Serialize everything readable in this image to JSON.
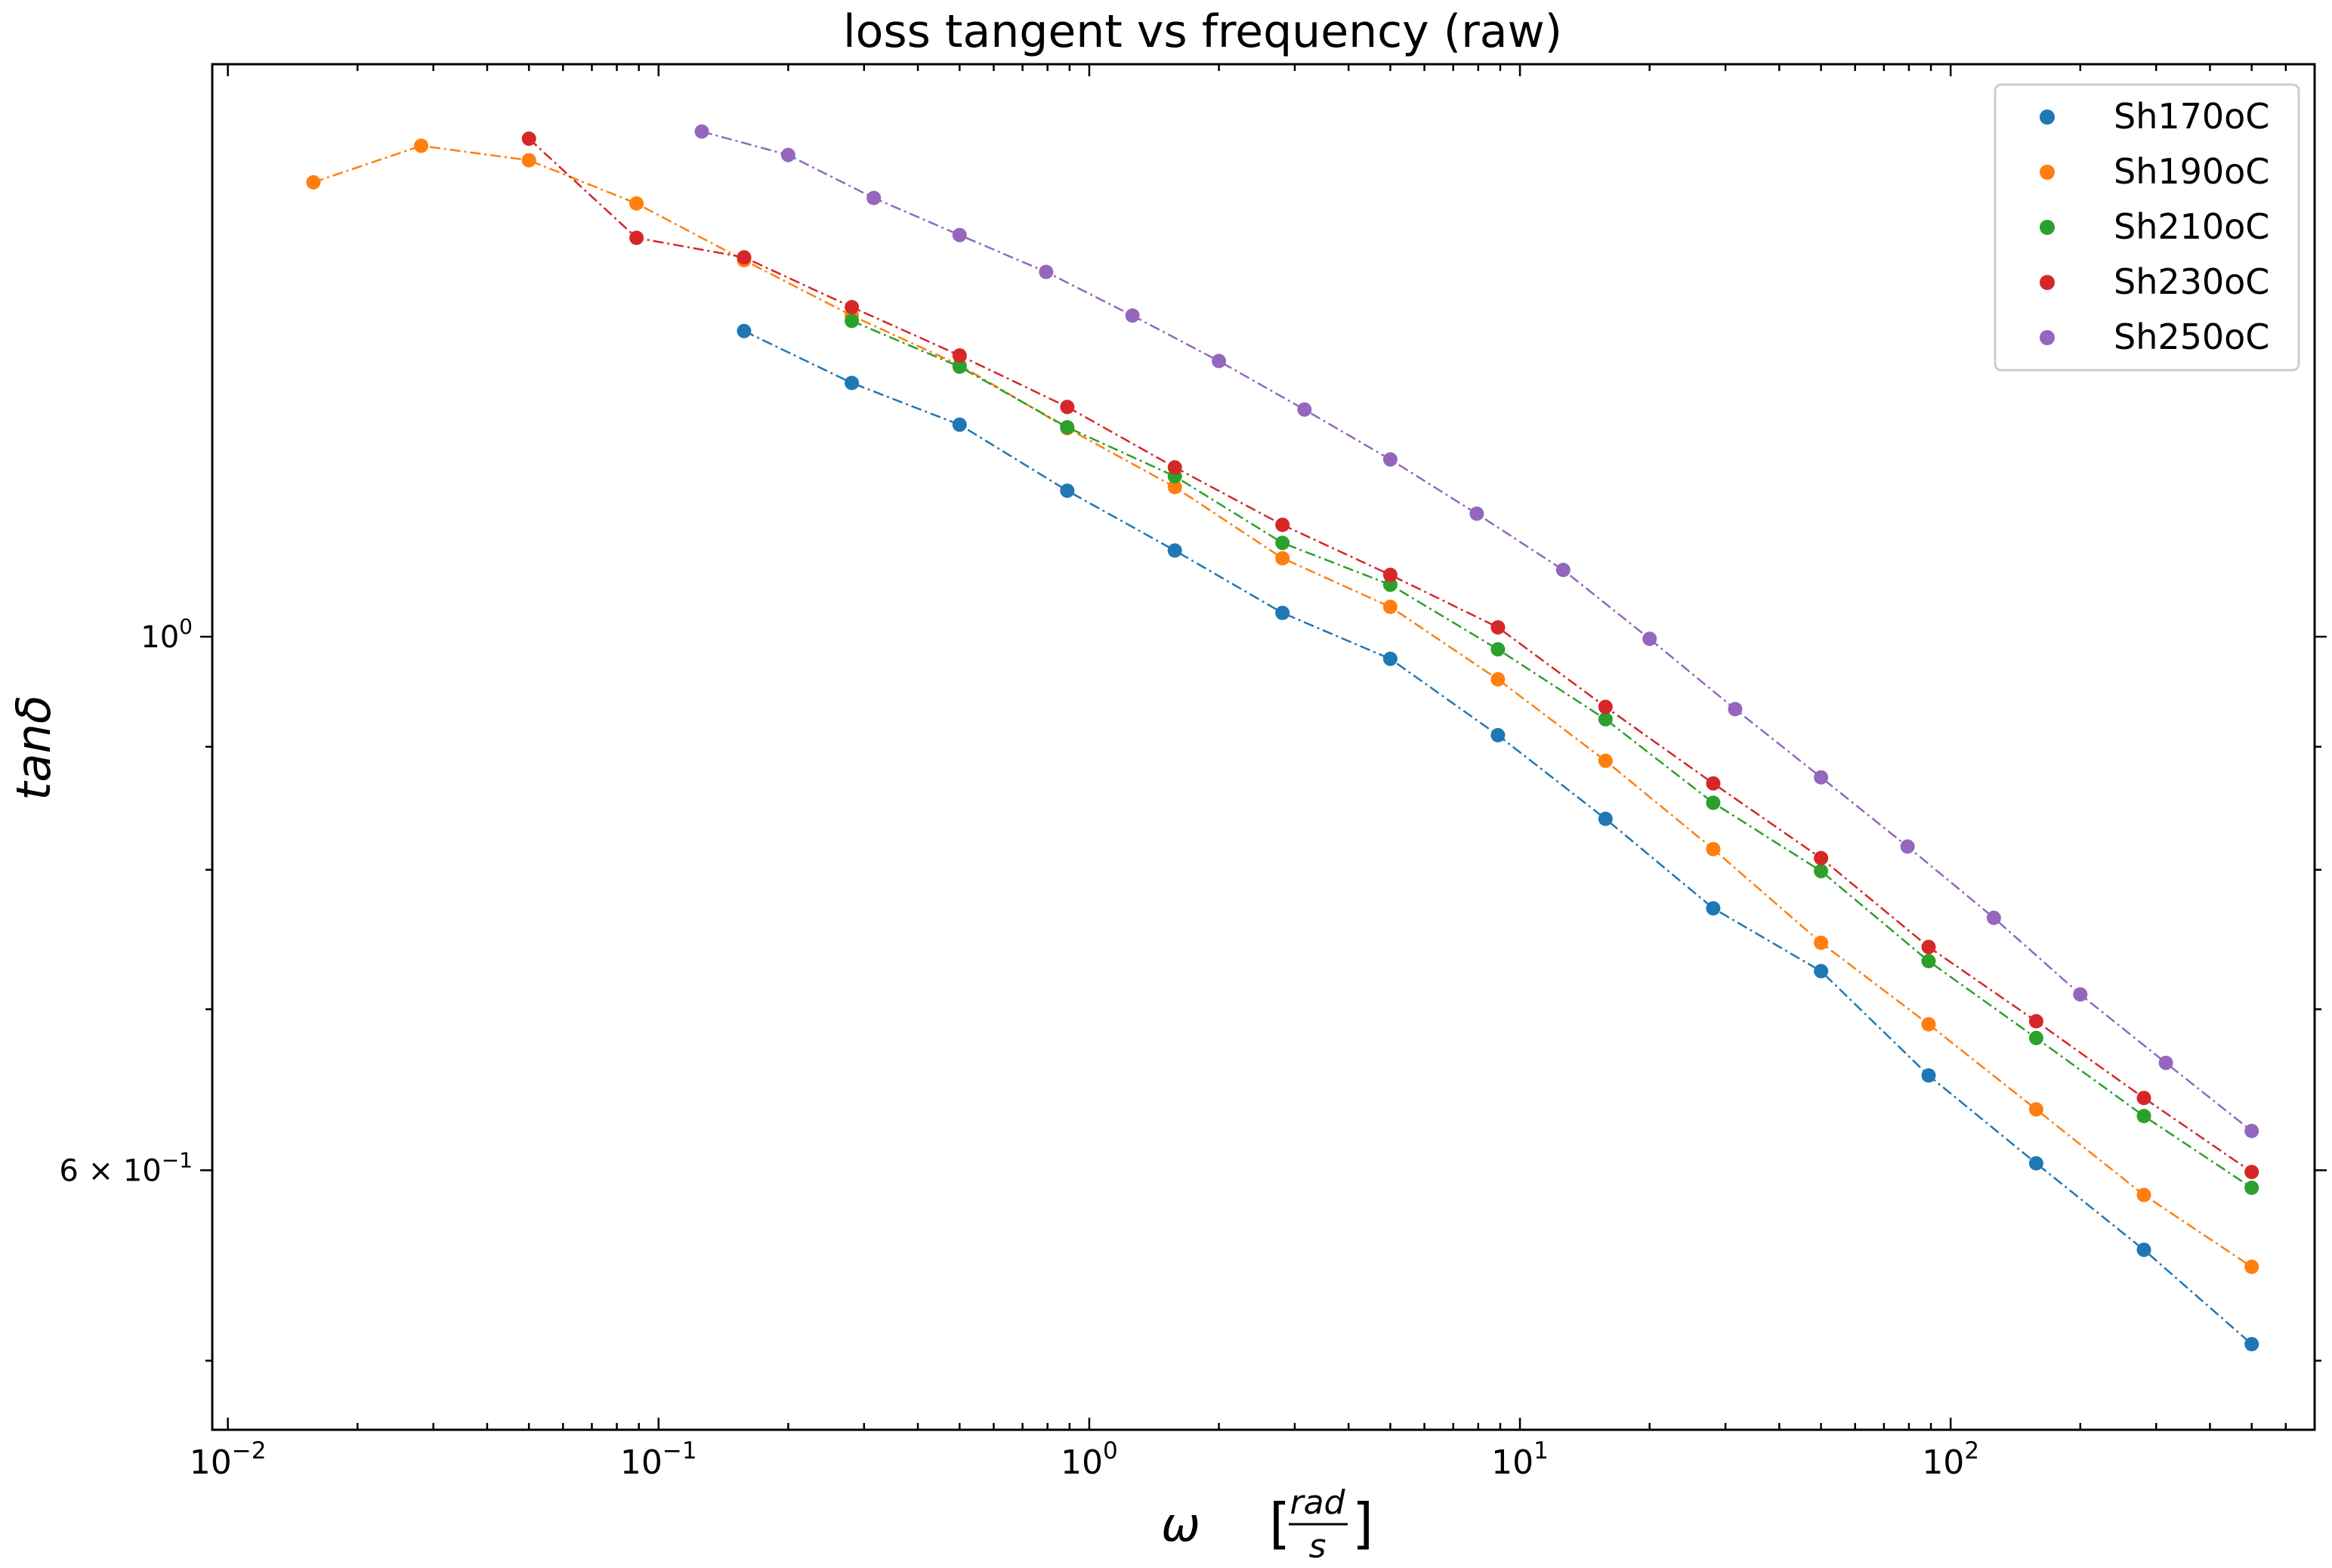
{
  "chart_data": {
    "type": "line",
    "title": "loss tangent vs frequency (raw)",
    "xlabel": {
      "symbol": "ω",
      "unit_numerator": "rad",
      "unit_denominator": "s"
    },
    "ylabel": "tanδ",
    "x_scale": "log",
    "y_scale": "log",
    "xlim": [
      0.0092,
      700
    ],
    "ylim": [
      0.468,
      1.73
    ],
    "x_ticks": [
      {
        "value": 0.01,
        "base": "10",
        "exp": "−2"
      },
      {
        "value": 0.1,
        "base": "10",
        "exp": "−1"
      },
      {
        "value": 1,
        "base": "10",
        "exp": "0"
      },
      {
        "value": 10,
        "base": "10",
        "exp": "1"
      },
      {
        "value": 100,
        "base": "10",
        "exp": "2"
      }
    ],
    "y_ticks": [
      {
        "value": 1.0,
        "mantissa": "",
        "base": "10",
        "exp": "0"
      },
      {
        "value": 0.6,
        "mantissa": "6 × ",
        "base": "10",
        "exp": "−1"
      }
    ],
    "y_minor_ticks": [
      0.5,
      0.7,
      0.8,
      0.9
    ],
    "legend_position": "top-right",
    "grid": false,
    "series": [
      {
        "name": "Sh170oC",
        "color": "#1f77b4",
        "x": [
          0.158,
          0.281,
          0.5,
          0.889,
          1.58,
          2.81,
          5.0,
          8.89,
          15.8,
          28.1,
          50.0,
          88.9,
          158,
          281,
          500
        ],
        "y": [
          1.34,
          1.275,
          1.225,
          1.15,
          1.086,
          1.023,
          0.979,
          0.91,
          0.84,
          0.771,
          0.726,
          0.657,
          0.604,
          0.556,
          0.508
        ]
      },
      {
        "name": "Sh190oC",
        "color": "#ff7f0e",
        "x": [
          0.0158,
          0.0281,
          0.05,
          0.0889,
          0.158,
          0.281,
          0.5,
          0.889,
          1.58,
          2.81,
          5.0,
          8.89,
          15.8,
          28.1,
          50.0,
          88.9,
          158,
          281,
          500
        ],
        "y": [
          1.545,
          1.6,
          1.578,
          1.514,
          1.434,
          1.36,
          1.297,
          1.221,
          1.154,
          1.078,
          1.029,
          0.96,
          0.888,
          0.816,
          0.746,
          0.69,
          0.636,
          0.586,
          0.547
        ]
      },
      {
        "name": "Sh210oC",
        "color": "#2ca02c",
        "x": [
          0.281,
          0.5,
          0.889,
          1.58,
          2.81,
          5.0,
          8.89,
          15.8,
          28.1,
          50.0,
          88.9,
          158,
          281,
          500
        ],
        "y": [
          1.353,
          1.295,
          1.222,
          1.166,
          1.094,
          1.051,
          0.988,
          0.924,
          0.853,
          0.799,
          0.733,
          0.681,
          0.632,
          0.59
        ]
      },
      {
        "name": "Sh230oC",
        "color": "#d62728",
        "x": [
          0.05,
          0.0889,
          0.158,
          0.281,
          0.5,
          0.889,
          1.58,
          2.81,
          5.0,
          8.89,
          15.8,
          28.1,
          50.0,
          88.9,
          158,
          281,
          500
        ],
        "y": [
          1.611,
          1.465,
          1.438,
          1.371,
          1.309,
          1.246,
          1.176,
          1.113,
          1.061,
          1.009,
          0.935,
          0.869,
          0.809,
          0.743,
          0.692,
          0.643,
          0.599
        ]
      },
      {
        "name": "Sh250oC",
        "color": "#9467bd",
        "x": [
          0.126,
          0.2,
          0.316,
          0.5,
          0.794,
          1.26,
          2.0,
          3.16,
          5.0,
          7.94,
          12.6,
          20.0,
          31.6,
          50.0,
          79.4,
          126,
          200,
          316,
          500
        ],
        "y": [
          1.622,
          1.586,
          1.522,
          1.469,
          1.418,
          1.36,
          1.302,
          1.243,
          1.185,
          1.125,
          1.066,
          0.998,
          0.933,
          0.874,
          0.818,
          0.764,
          0.71,
          0.665,
          0.623
        ]
      }
    ]
  }
}
